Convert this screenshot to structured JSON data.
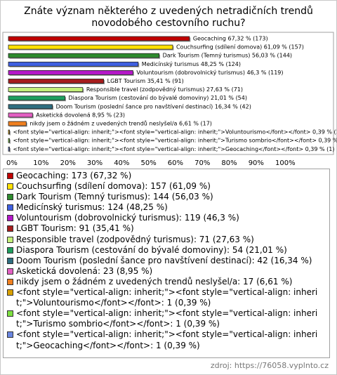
{
  "chart_data": {
    "type": "bar",
    "orientation": "horizontal",
    "title": "Znáte význam některého z uvedených netradičních trendů novodobého cestovního ruchu?",
    "values": [
      67.32,
      61.09,
      56.03,
      48.25,
      46.3,
      35.41,
      27.63,
      21.01,
      16.34,
      8.95,
      6.61,
      0.39,
      0.39,
      0.39
    ],
    "value_labels": [
      "Geocaching 67,32 % (173)",
      "Couchsurfing (sdílení domova) 61,09 % (157)",
      "Dark Tourism (Temný turismus) 56,03 % (144)",
      "Medicínský turismus 48,25 % (124)",
      "Voluntourism (dobrovolnický turismus) 46,3 % (119)",
      "LGBT Tourism 35,41 % (91)",
      "Responsible travel (zodpovědný turismus) 27,63 % (71)",
      "Diaspora Tourism (cestování do bývalé domoviny) 21,01 % (54)",
      "Doom Tourism (poslední šance pro navštívení destinací) 16,34 % (42)",
      "Asketická dovolená 8,95 % (23)",
      "nikdy jsem o žádném z uvedených trendů neslyšel/a 6,61 % (17)",
      "<font style=\"vertical-align: inherit;\"><font style=\"vertical-align: inherit;\">Voluntourismo</font></font> 0,39 % (1)",
      "<font style=\"vertical-align: inherit;\"><font style=\"vertical-align: inherit;\">Turismo sombrio</font></font> 0,39 % (1)",
      "<font style=\"vertical-align: inherit;\"><font style=\"vertical-align: inherit;\">Geocaching</font></font> 0,39 % (1)"
    ],
    "legend": [
      "Geocaching: 173 (67,32 %)",
      "Couchsurfing (sdílení domova): 157 (61,09 %)",
      "Dark Tourism (Temný turismus): 144 (56,03 %)",
      "Medicínský turismus: 124 (48,25 %)",
      "Voluntourism (dobrovolnický turismus): 119 (46,3 %)",
      "LGBT Tourism: 91 (35,41 %)",
      "Responsible travel (zodpovědný turismus): 71 (27,63 %)",
      "Diaspora Tourism (cestování do bývalé domoviny): 54 (21,01 %)",
      "Doom Tourism (poslední šance pro navštívení destinací): 42 (16,34 %)",
      "Asketická dovolená: 23 (8,95 %)",
      "nikdy jsem o žádném z uvedených trendů neslyšel/a: 17 (6,61 %)",
      "<font style=\"vertical-align: inherit;\"><font style=\"vertical-align: inherit;\">Voluntourismo</font></font>: 1 (0,39 %)",
      "<font style=\"vertical-align: inherit;\"><font style=\"vertical-align: inherit;\">Turismo sombrio</font></font>: 1 (0,39 %)",
      "<font style=\"vertical-align: inherit;\"><font style=\"vertical-align: inherit;\">Geocaching</font></font>: 1 (0,39 %)"
    ],
    "colors": [
      "#c00000",
      "#ffe000",
      "#2e8b2e",
      "#3f5fe0",
      "#b418c8",
      "#a51c1c",
      "#c4f07a",
      "#1f9e5e",
      "#2f6e80",
      "#e35fc2",
      "#f08020",
      "#d9a000",
      "#7ee040",
      "#6a86e0"
    ],
    "xlim": [
      0,
      100
    ],
    "xticks": [
      {
        "value": 0,
        "label": "0%"
      },
      {
        "value": 10,
        "label": "10%"
      },
      {
        "value": 20,
        "label": "20%"
      },
      {
        "value": 30,
        "label": "30%"
      },
      {
        "value": 40,
        "label": "40%"
      },
      {
        "value": 50,
        "label": "50%"
      },
      {
        "value": 60,
        "label": "60%"
      },
      {
        "value": 70,
        "label": "70%"
      },
      {
        "value": 80,
        "label": "80%"
      },
      {
        "value": 90,
        "label": "90%"
      },
      {
        "value": 100,
        "label": "100%"
      }
    ],
    "grid": false,
    "legend_position": "bottom",
    "source": "zdroj: https://76058.vyplnto.cz"
  }
}
